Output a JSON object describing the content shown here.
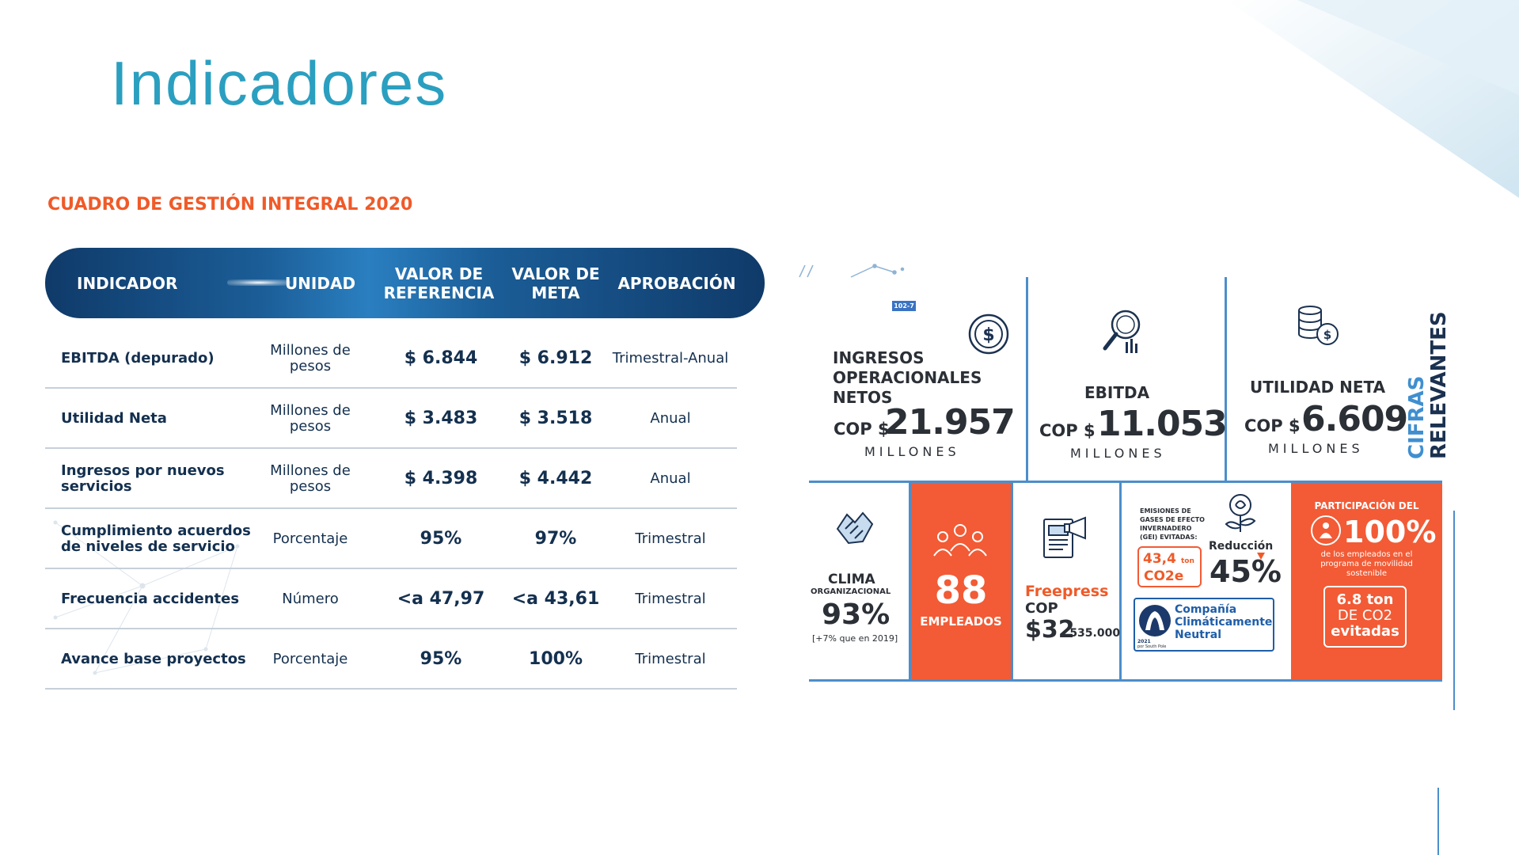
{
  "title": "Indicadores",
  "table": {
    "heading": "CUADRO DE GESTIÓN INTEGRAL 2020",
    "headers": {
      "indicador": "INDICADOR",
      "unidad": "UNIDAD",
      "referencia": "VALOR DE REFERENCIA",
      "meta": "VALOR DE META",
      "aprobacion": "APROBACIÓN"
    },
    "rows": [
      {
        "indicador": "EBITDA (depurado)",
        "unidad": "Millones de pesos",
        "referencia": "$ 6.844",
        "meta": "$ 6.912",
        "aprobacion": "Trimestral-Anual"
      },
      {
        "indicador": "Utilidad Neta",
        "unidad": "Millones de pesos",
        "referencia": "$ 3.483",
        "meta": "$ 3.518",
        "aprobacion": "Anual"
      },
      {
        "indicador": "Ingresos por nuevos servicios",
        "unidad": "Millones de pesos",
        "referencia": "$ 4.398",
        "meta": "$ 4.442",
        "aprobacion": "Anual"
      },
      {
        "indicador": "Cumplimiento acuerdos de niveles de servicio",
        "unidad": "Porcentaje",
        "referencia": "95%",
        "meta": "97%",
        "aprobacion": "Trimestral"
      },
      {
        "indicador": "Frecuencia accidentes",
        "unidad": "Número",
        "referencia": "<a 47,97",
        "meta": "<a 43,61",
        "aprobacion": "Trimestral"
      },
      {
        "indicador": "Avance base proyectos",
        "unidad": "Porcentaje",
        "referencia": "95%",
        "meta": "100%",
        "aprobacion": "Trimestral"
      }
    ]
  },
  "figures": {
    "tag": "102-7",
    "side_title_1": "CIFRAS",
    "side_title_2": "RELEVANTES",
    "ingresos": {
      "label_1": "INGRESOS",
      "label_2": "OPERACIONALES",
      "label_3": "NETOS",
      "prefix": "COP $",
      "value": "21.957",
      "unit": "MILLONES",
      "icon": "dollar-circle-icon"
    },
    "ebitda": {
      "label": "EBITDA",
      "prefix": "COP $",
      "value": "11.053",
      "unit": "MILLONES",
      "icon": "magnifier-chart-icon"
    },
    "utilidad": {
      "label": "UTILIDAD NETA",
      "prefix": "COP $",
      "value": "6.609",
      "unit": "MILLONES",
      "icon": "coins-icon"
    },
    "clima": {
      "label_1": "CLIMA",
      "label_2": "ORGANIZACIONAL",
      "value": "93%",
      "note": "[+7% que en 2019]",
      "icon": "handshake-icon"
    },
    "empleados": {
      "value": "88",
      "label": "EMPLEADOS",
      "icon": "people-group-icon"
    },
    "freepress": {
      "label": "Freepress",
      "prefix": "COP",
      "value_main": "$32",
      "value_small": ".535.000",
      "icon": "press-megaphone-icon"
    },
    "emisiones": {
      "label_1": "EMISIONES DE",
      "label_2": "GASES DE EFECTO",
      "label_3": "INVERNADERO",
      "label_4": "(GEI) EVITADAS:",
      "amount": "43,4",
      "amount_unit": "ton",
      "amount_sub": "CO2e",
      "reduction_label": "Reducción",
      "reduction_value": "45%",
      "neutral_1": "Compañía",
      "neutral_2": "Climáticamente",
      "neutral_3": "Neutral",
      "badge_year": "2021",
      "badge_sub": "por South Pole",
      "icon": "plant-icon"
    },
    "movilidad": {
      "heading": "PARTICIPACIÓN DEL",
      "value": "100%",
      "desc_1": "de los empleados en el",
      "desc_2": "programa de movilidad",
      "desc_3": "sostenible",
      "box_1": "6.8 ton",
      "box_2": "DE CO2",
      "box_3": "evitadas",
      "icon": "person-target-icon"
    }
  },
  "colors": {
    "title": "#2b9fc0",
    "heading_orange": "#f05a28",
    "navy": "#14304f",
    "orange_panel": "#f25b35",
    "blue_line": "#4c8ecb"
  }
}
